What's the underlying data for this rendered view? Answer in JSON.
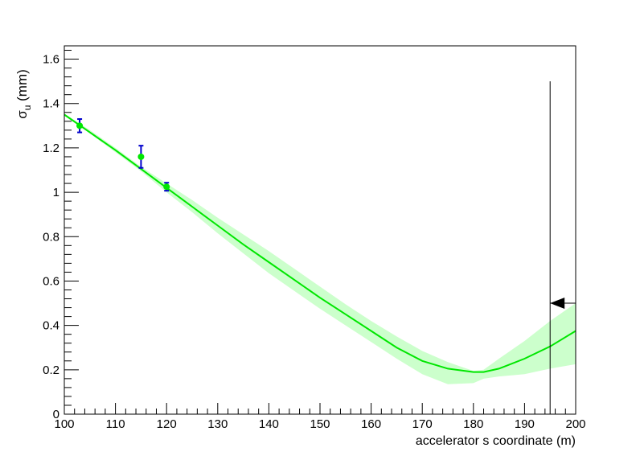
{
  "chart_data": {
    "type": "line",
    "title": "",
    "xlabel": "accelerator s coordinate (m)",
    "ylabel": {
      "main": "σ",
      "sub": "u",
      "suffix": " (mm)"
    },
    "xlim": [
      100,
      200
    ],
    "ylim": [
      0,
      1.66
    ],
    "x_ticks": [
      100,
      110,
      120,
      130,
      140,
      150,
      160,
      170,
      180,
      190,
      200
    ],
    "x_tick_labels": [
      "100",
      "110",
      "120",
      "130",
      "140",
      "150",
      "160",
      "170",
      "180",
      "190",
      "200"
    ],
    "y_ticks": [
      0,
      0.2,
      0.4,
      0.6,
      0.8,
      1,
      1.2,
      1.4,
      1.6
    ],
    "y_tick_labels": [
      "0",
      "0.2",
      "0.4",
      "0.6",
      "0.8",
      "1",
      "1.2",
      "1.4",
      "1.6"
    ],
    "grid": false,
    "colors": {
      "fit_line": "#00e600",
      "band": "#ccffcc",
      "points": "#00e600",
      "error_bars": "#0000cc",
      "marker": "#000000"
    },
    "fit_curve": {
      "x": [
        100,
        105,
        110,
        115,
        120,
        125,
        130,
        135,
        140,
        145,
        150,
        155,
        160,
        165,
        170,
        175,
        180,
        182,
        185,
        190,
        195,
        200
      ],
      "y": [
        1.35,
        1.27,
        1.19,
        1.105,
        1.02,
        0.935,
        0.85,
        0.765,
        0.685,
        0.605,
        0.525,
        0.45,
        0.375,
        0.3,
        0.24,
        0.205,
        0.19,
        0.19,
        0.205,
        0.25,
        0.305,
        0.375
      ]
    },
    "band_upper": [
      1.355,
      1.28,
      1.2,
      1.115,
      1.04,
      0.965,
      0.885,
      0.81,
      0.735,
      0.655,
      0.575,
      0.495,
      0.42,
      0.35,
      0.285,
      0.235,
      0.195,
      0.2,
      0.25,
      0.33,
      0.42,
      0.5
    ],
    "band_lower": [
      1.345,
      1.265,
      1.18,
      1.095,
      1.0,
      0.91,
      0.815,
      0.725,
      0.635,
      0.555,
      0.475,
      0.4,
      0.325,
      0.25,
      0.18,
      0.135,
      0.14,
      0.16,
      0.17,
      0.18,
      0.205,
      0.225
    ],
    "points": [
      {
        "x": 103,
        "y": 1.3,
        "err": 0.03
      },
      {
        "x": 115,
        "y": 1.16,
        "err": 0.05
      },
      {
        "x": 120,
        "y": 1.025,
        "err": 0.018
      }
    ],
    "vertical_marker": {
      "x": 195,
      "y_top": 1.5
    },
    "arrow": {
      "y": 0.5,
      "x_tip": 195,
      "x_tail": 200,
      "direction": "left"
    }
  }
}
